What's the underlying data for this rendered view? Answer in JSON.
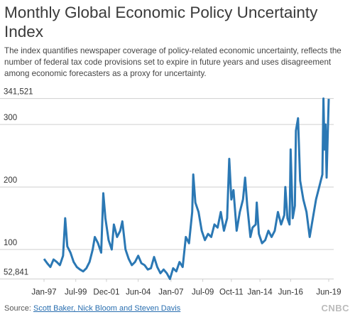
{
  "chart_data": {
    "type": "line",
    "title": "Monthly Global Economic Policy Uncertainty Index",
    "subtitle": "The index quantifies newspaper coverage of policy-related economic uncertainty, reflects the number of federal tax code provisions set to expire in future years and uses disagreement among economic forecasters as a proxy for uncertainty.",
    "source_label": "Source:",
    "source": "Scott Baker, Nick Bloom and Steven Davis",
    "logo": "CNBC",
    "x": [
      "1997-01",
      "1997-04",
      "1997-07",
      "1997-10",
      "1998-01",
      "1998-04",
      "1998-07",
      "1998-09",
      "1998-11",
      "1999-02",
      "1999-05",
      "1999-08",
      "1999-11",
      "2000-02",
      "2000-05",
      "2000-08",
      "2000-11",
      "2001-01",
      "2001-04",
      "2001-07",
      "2001-09",
      "2001-11",
      "2002-02",
      "2002-05",
      "2002-07",
      "2002-10",
      "2003-01",
      "2003-03",
      "2003-06",
      "2003-09",
      "2003-12",
      "2004-03",
      "2004-06",
      "2004-09",
      "2004-12",
      "2005-03",
      "2005-06",
      "2005-09",
      "2005-12",
      "2006-03",
      "2006-06",
      "2006-09",
      "2006-12",
      "2007-03",
      "2007-06",
      "2007-09",
      "2007-12",
      "2008-03",
      "2008-06",
      "2008-09",
      "2008-10",
      "2008-12",
      "2009-03",
      "2009-06",
      "2009-09",
      "2009-12",
      "2010-03",
      "2010-06",
      "2010-09",
      "2010-12",
      "2011-03",
      "2011-06",
      "2011-08",
      "2011-10",
      "2011-12",
      "2012-03",
      "2012-06",
      "2012-09",
      "2012-11",
      "2013-01",
      "2013-04",
      "2013-06",
      "2013-09",
      "2013-10",
      "2013-12",
      "2014-03",
      "2014-06",
      "2014-09",
      "2014-12",
      "2015-03",
      "2015-06",
      "2015-09",
      "2015-12",
      "2016-01",
      "2016-03",
      "2016-05",
      "2016-06",
      "2016-08",
      "2016-10",
      "2016-11",
      "2017-01",
      "2017-03",
      "2017-06",
      "2017-09",
      "2017-12",
      "2018-03",
      "2018-06",
      "2018-09",
      "2018-12",
      "2019-01",
      "2019-02",
      "2019-03",
      "2019-04",
      "2019-05",
      "2019-06"
    ],
    "series": [
      {
        "name": "Index",
        "color": "#2b78b4",
        "values": [
          85,
          78,
          72,
          84,
          80,
          75,
          90,
          150,
          105,
          95,
          80,
          72,
          68,
          65,
          70,
          80,
          100,
          120,
          110,
          95,
          190,
          150,
          115,
          100,
          140,
          120,
          130,
          145,
          100,
          85,
          75,
          80,
          90,
          78,
          75,
          68,
          70,
          88,
          72,
          62,
          68,
          62,
          52.841,
          70,
          65,
          80,
          72,
          120,
          110,
          160,
          220,
          175,
          160,
          130,
          115,
          125,
          120,
          140,
          135,
          160,
          130,
          150,
          245,
          180,
          195,
          130,
          160,
          180,
          215,
          170,
          120,
          135,
          140,
          175,
          125,
          110,
          115,
          130,
          120,
          130,
          160,
          140,
          155,
          200,
          150,
          140,
          260,
          150,
          170,
          290,
          310,
          210,
          180,
          160,
          120,
          150,
          180,
          200,
          220,
          341.521,
          260,
          300,
          215,
          280,
          341
        ]
      }
    ],
    "xlim": [
      "1997-01",
      "2019-06"
    ],
    "xticks": [
      {
        "value": "1997-01",
        "label": "Jan-97"
      },
      {
        "value": "1999-07",
        "label": "Jul-99"
      },
      {
        "value": "2001-12",
        "label": "Dec-01"
      },
      {
        "value": "2004-06",
        "label": "Jun-04"
      },
      {
        "value": "2007-01",
        "label": "Jan-07"
      },
      {
        "value": "2009-07",
        "label": "Jul-09"
      },
      {
        "value": "2011-10",
        "label": "Oct-11"
      },
      {
        "value": "2014-01",
        "label": "Jan-14"
      },
      {
        "value": "2016-06",
        "label": "Jun-16"
      },
      {
        "value": "2019-06",
        "label": "Jun-19"
      }
    ],
    "ylim": [
      52.841,
      341.521
    ],
    "yticks": [
      {
        "value": 52.841,
        "label": "52,841"
      },
      100,
      200,
      300,
      {
        "value": 341.521,
        "label": "341,521"
      }
    ],
    "grid": true
  }
}
